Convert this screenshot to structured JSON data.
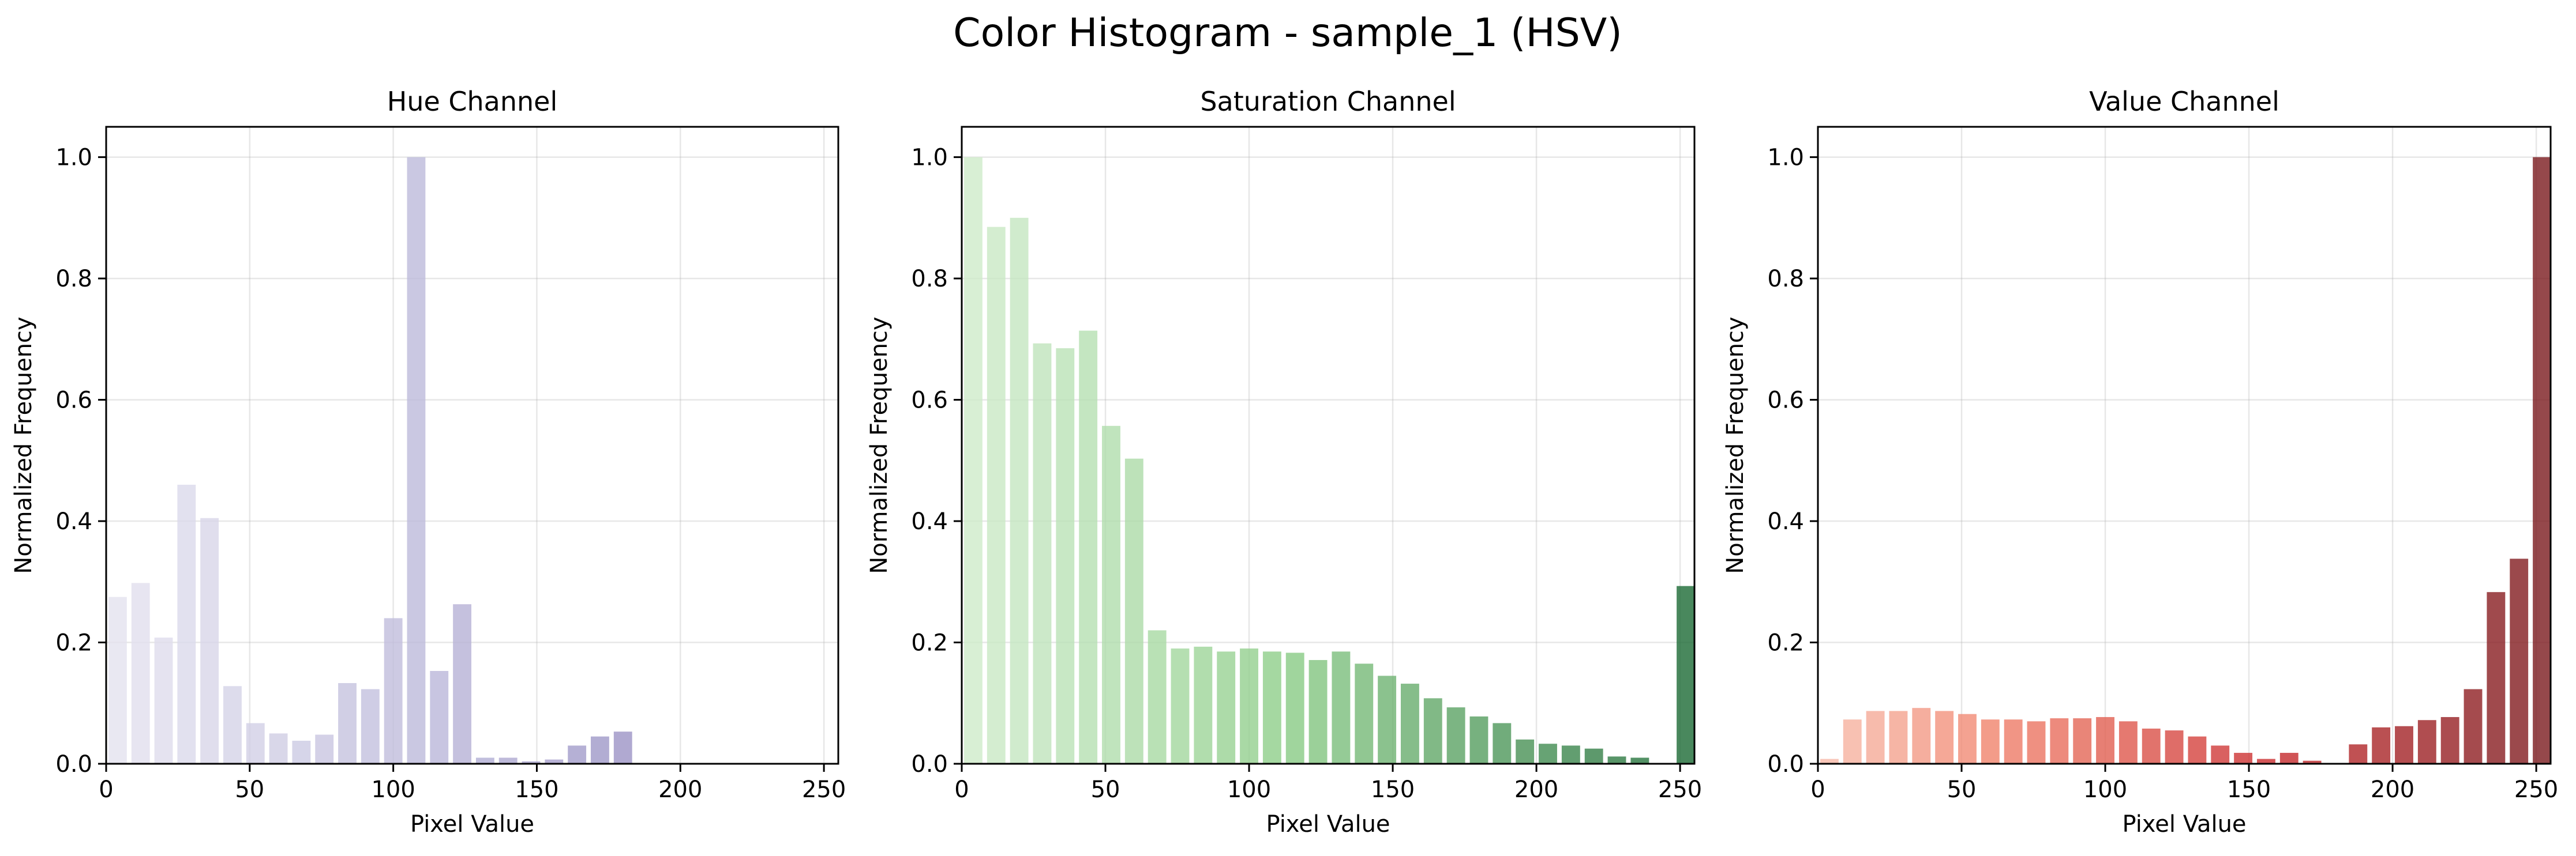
{
  "figure_title": "Color Histogram - sample_1 (HSV)",
  "chart_data": [
    {
      "type": "bar",
      "title": "Hue Channel",
      "xlabel": "Pixel Value",
      "ylabel": "Normalized Frequency",
      "xlim": [
        0,
        255
      ],
      "ylim": [
        0,
        1.05
      ],
      "xticks": [
        0,
        50,
        100,
        150,
        200,
        250
      ],
      "yticks": [
        0.0,
        0.2,
        0.4,
        0.6,
        0.8,
        1.0
      ],
      "ytick_labels": [
        "0.0",
        "0.2",
        "0.4",
        "0.6",
        "0.8",
        "1.0"
      ],
      "grid": true,
      "bin_width": 8,
      "colormap": [
        "#f0eff6",
        "#bcb9da",
        "#7a6cb0"
      ],
      "x": [
        4,
        12,
        20,
        28,
        36,
        44,
        52,
        60,
        68,
        76,
        84,
        92,
        100,
        108,
        116,
        124,
        132,
        140,
        148,
        156,
        164,
        172,
        180,
        188,
        196,
        204,
        212,
        220,
        228,
        236,
        244,
        252
      ],
      "values": [
        0.275,
        0.298,
        0.208,
        0.46,
        0.405,
        0.128,
        0.067,
        0.05,
        0.038,
        0.048,
        0.133,
        0.123,
        0.24,
        1.0,
        0.153,
        0.263,
        0.01,
        0.01,
        0.004,
        0.007,
        0.03,
        0.045,
        0.053,
        0,
        0,
        0,
        0,
        0,
        0,
        0,
        0,
        0
      ]
    },
    {
      "type": "bar",
      "title": "Saturation Channel",
      "xlabel": "Pixel Value",
      "ylabel": "Normalized Frequency",
      "xlim": [
        0,
        255
      ],
      "ylim": [
        0,
        1.05
      ],
      "xticks": [
        0,
        50,
        100,
        150,
        200,
        250
      ],
      "yticks": [
        0.0,
        0.2,
        0.4,
        0.6,
        0.8,
        1.0
      ],
      "ytick_labels": [
        "0.0",
        "0.2",
        "0.4",
        "0.6",
        "0.8",
        "1.0"
      ],
      "grid": true,
      "bin_width": 8,
      "colormap": [
        "#e3f4de",
        "#8ccd88",
        "#1b6a34"
      ],
      "x": [
        4,
        12,
        20,
        28,
        36,
        44,
        52,
        60,
        68,
        76,
        84,
        92,
        100,
        108,
        116,
        124,
        132,
        140,
        148,
        156,
        164,
        172,
        180,
        188,
        196,
        204,
        212,
        220,
        228,
        236,
        244,
        252
      ],
      "values": [
        1.0,
        0.885,
        0.9,
        0.693,
        0.685,
        0.714,
        0.557,
        0.503,
        0.22,
        0.19,
        0.193,
        0.185,
        0.19,
        0.185,
        0.183,
        0.171,
        0.185,
        0.165,
        0.145,
        0.132,
        0.108,
        0.093,
        0.078,
        0.067,
        0.04,
        0.033,
        0.03,
        0.025,
        0.012,
        0.01,
        0,
        0.293
      ]
    },
    {
      "type": "bar",
      "title": "Value Channel",
      "xlabel": "Pixel Value",
      "ylabel": "Normalized Frequency",
      "xlim": [
        0,
        255
      ],
      "ylim": [
        0,
        1.05
      ],
      "xticks": [
        0,
        50,
        100,
        150,
        200,
        250
      ],
      "yticks": [
        0.0,
        0.2,
        0.4,
        0.6,
        0.8,
        1.0
      ],
      "ytick_labels": [
        "0.0",
        "0.2",
        "0.4",
        "0.6",
        "0.8",
        "1.0"
      ],
      "grid": true,
      "bin_width": 8,
      "colormap": [
        "#fbdacc",
        "#f07f68",
        "#c92a2d",
        "#7b1a1e"
      ],
      "x": [
        4,
        12,
        20,
        28,
        36,
        44,
        52,
        60,
        68,
        76,
        84,
        92,
        100,
        108,
        116,
        124,
        132,
        140,
        148,
        156,
        164,
        172,
        180,
        188,
        196,
        204,
        212,
        220,
        228,
        236,
        244,
        252
      ],
      "values": [
        0.008,
        0.073,
        0.087,
        0.087,
        0.092,
        0.087,
        0.082,
        0.073,
        0.073,
        0.07,
        0.075,
        0.075,
        0.077,
        0.07,
        0.058,
        0.055,
        0.045,
        0.03,
        0.018,
        0.008,
        0.018,
        0.005,
        0,
        0.032,
        0.06,
        0.062,
        0.072,
        0.077,
        0.123,
        0.283,
        0.338,
        1.0
      ]
    }
  ]
}
